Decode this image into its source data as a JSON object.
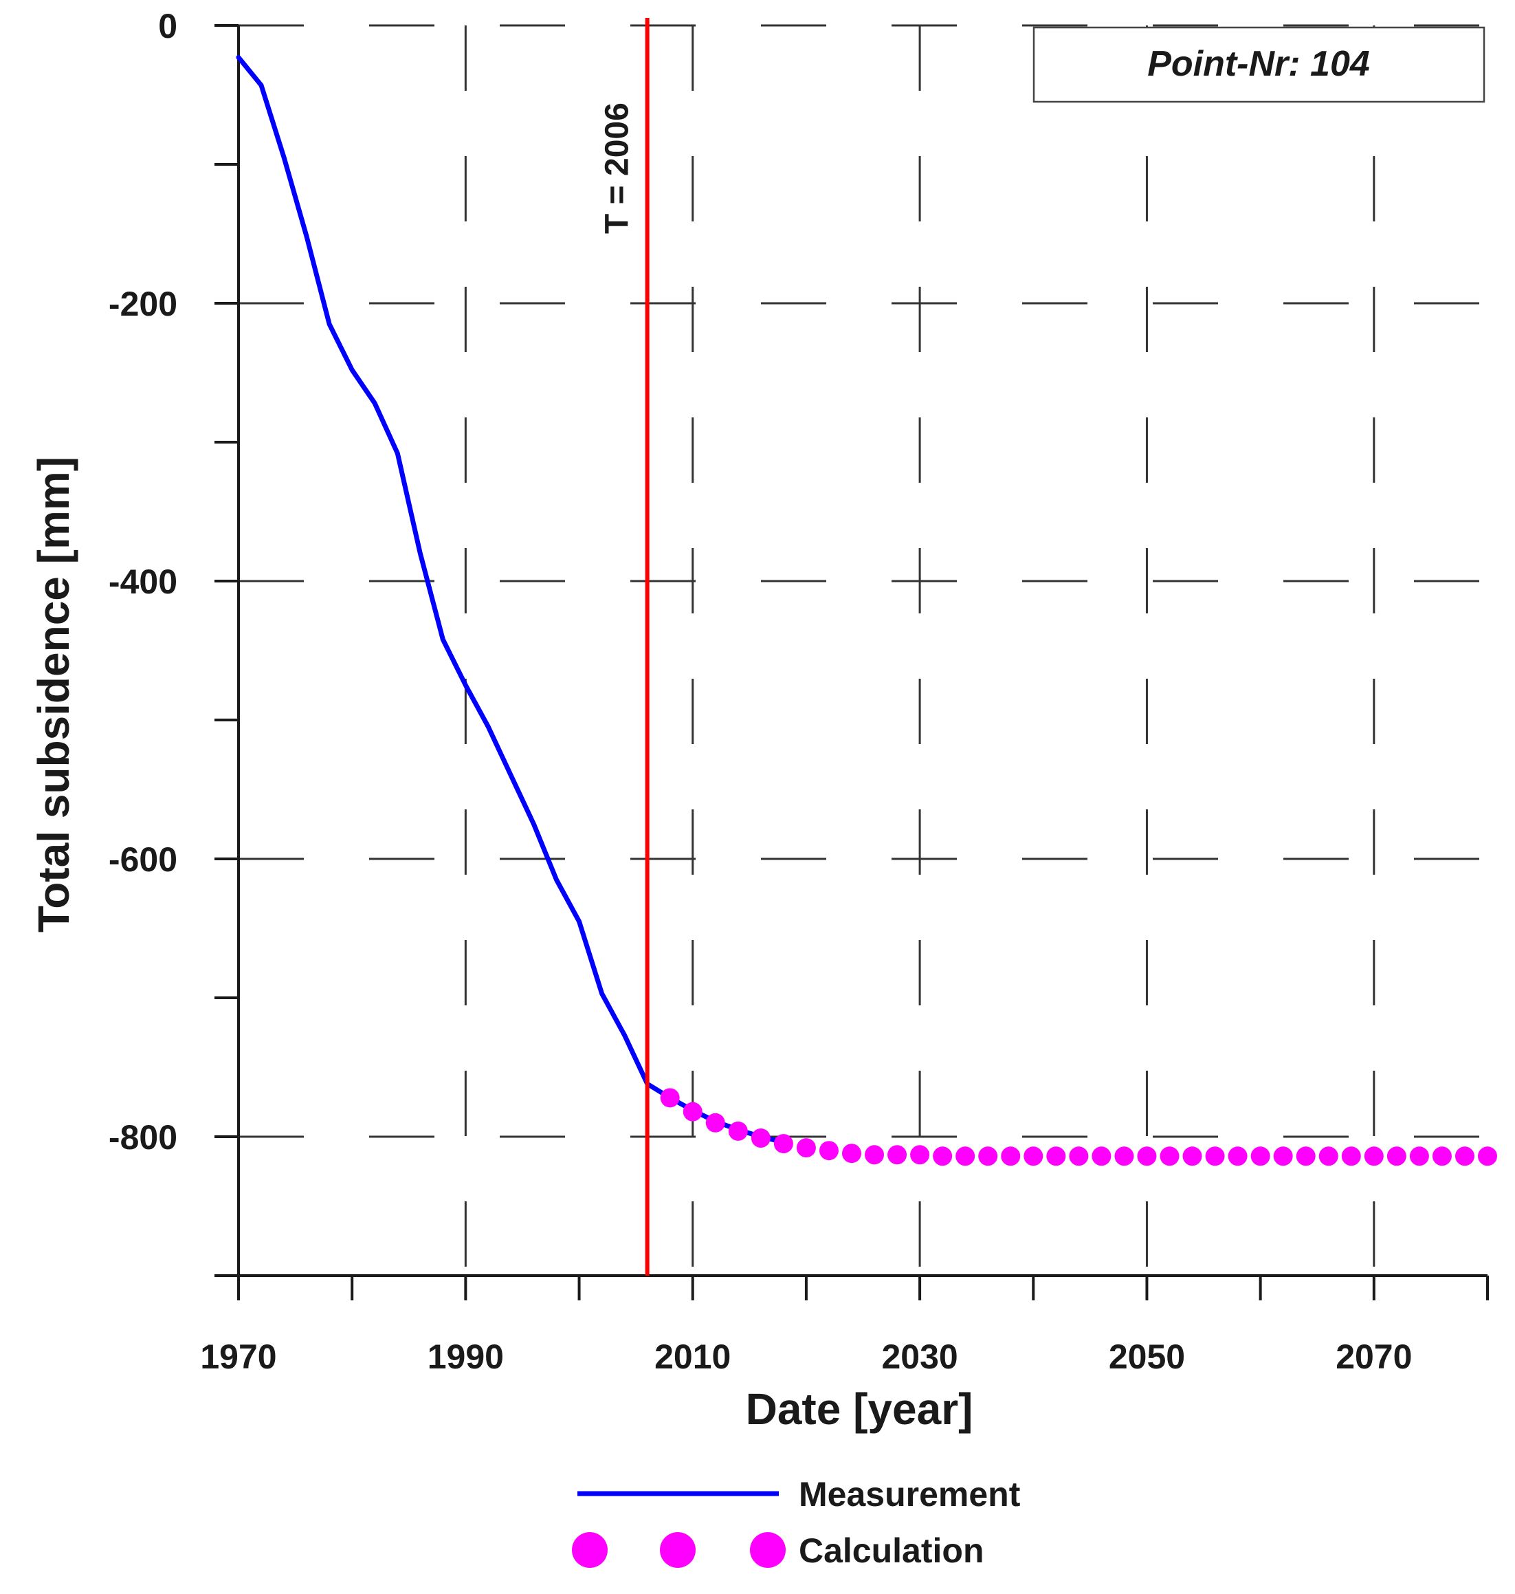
{
  "chart_data": {
    "type": "line",
    "xlabel": "Date [year]",
    "ylabel": "Total subsidence [mm]",
    "xlim": [
      1970,
      2080
    ],
    "ylim": [
      -900,
      0
    ],
    "x_ticks": [
      1970,
      1990,
      2010,
      2030,
      2050,
      2070
    ],
    "y_ticks": [
      0,
      -200,
      -400,
      -600,
      -800
    ],
    "grid": true,
    "legend_position": "bottom",
    "annotation_box": "Point-Nr: 104",
    "vertical_marker": {
      "x": 2006,
      "label": "T = 2006",
      "color": "#ff0000"
    },
    "series": [
      {
        "name": "Measurement",
        "style": "line",
        "color": "#0000ff",
        "x": [
          1970,
          1972,
          1974,
          1976,
          1978,
          1980,
          1982,
          1984,
          1986,
          1988,
          1990,
          1992,
          1994,
          1996,
          1998,
          2000,
          2002,
          2004,
          2006,
          2008,
          2010,
          2012,
          2014,
          2016,
          2018
        ],
        "y": [
          -23,
          -43,
          -95,
          -152,
          -215,
          -248,
          -272,
          -308,
          -380,
          -442,
          -475,
          -505,
          -540,
          -575,
          -615,
          -645,
          -697,
          -727,
          -762,
          -772,
          -781,
          -789,
          -795,
          -800,
          -804
        ]
      },
      {
        "name": "Calculation",
        "style": "markers",
        "color": "#ff00ff",
        "x": [
          2008,
          2010,
          2012,
          2014,
          2016,
          2018,
          2020,
          2022,
          2024,
          2026,
          2028,
          2030,
          2032,
          2034,
          2036,
          2038,
          2040,
          2042,
          2044,
          2046,
          2048,
          2050,
          2052,
          2054,
          2056,
          2058,
          2060,
          2062,
          2064,
          2066,
          2068,
          2070,
          2072,
          2074,
          2076,
          2078,
          2080
        ],
        "y": [
          -772,
          -782,
          -790,
          -796,
          -801,
          -805,
          -808,
          -810,
          -812,
          -813,
          -813,
          -813,
          -814,
          -814,
          -814,
          -814,
          -814,
          -814,
          -814,
          -814,
          -814,
          -814,
          -814,
          -814,
          -814,
          -814,
          -814,
          -814,
          -814,
          -814,
          -814,
          -814,
          -814,
          -814,
          -814,
          -814,
          -814
        ]
      }
    ]
  }
}
